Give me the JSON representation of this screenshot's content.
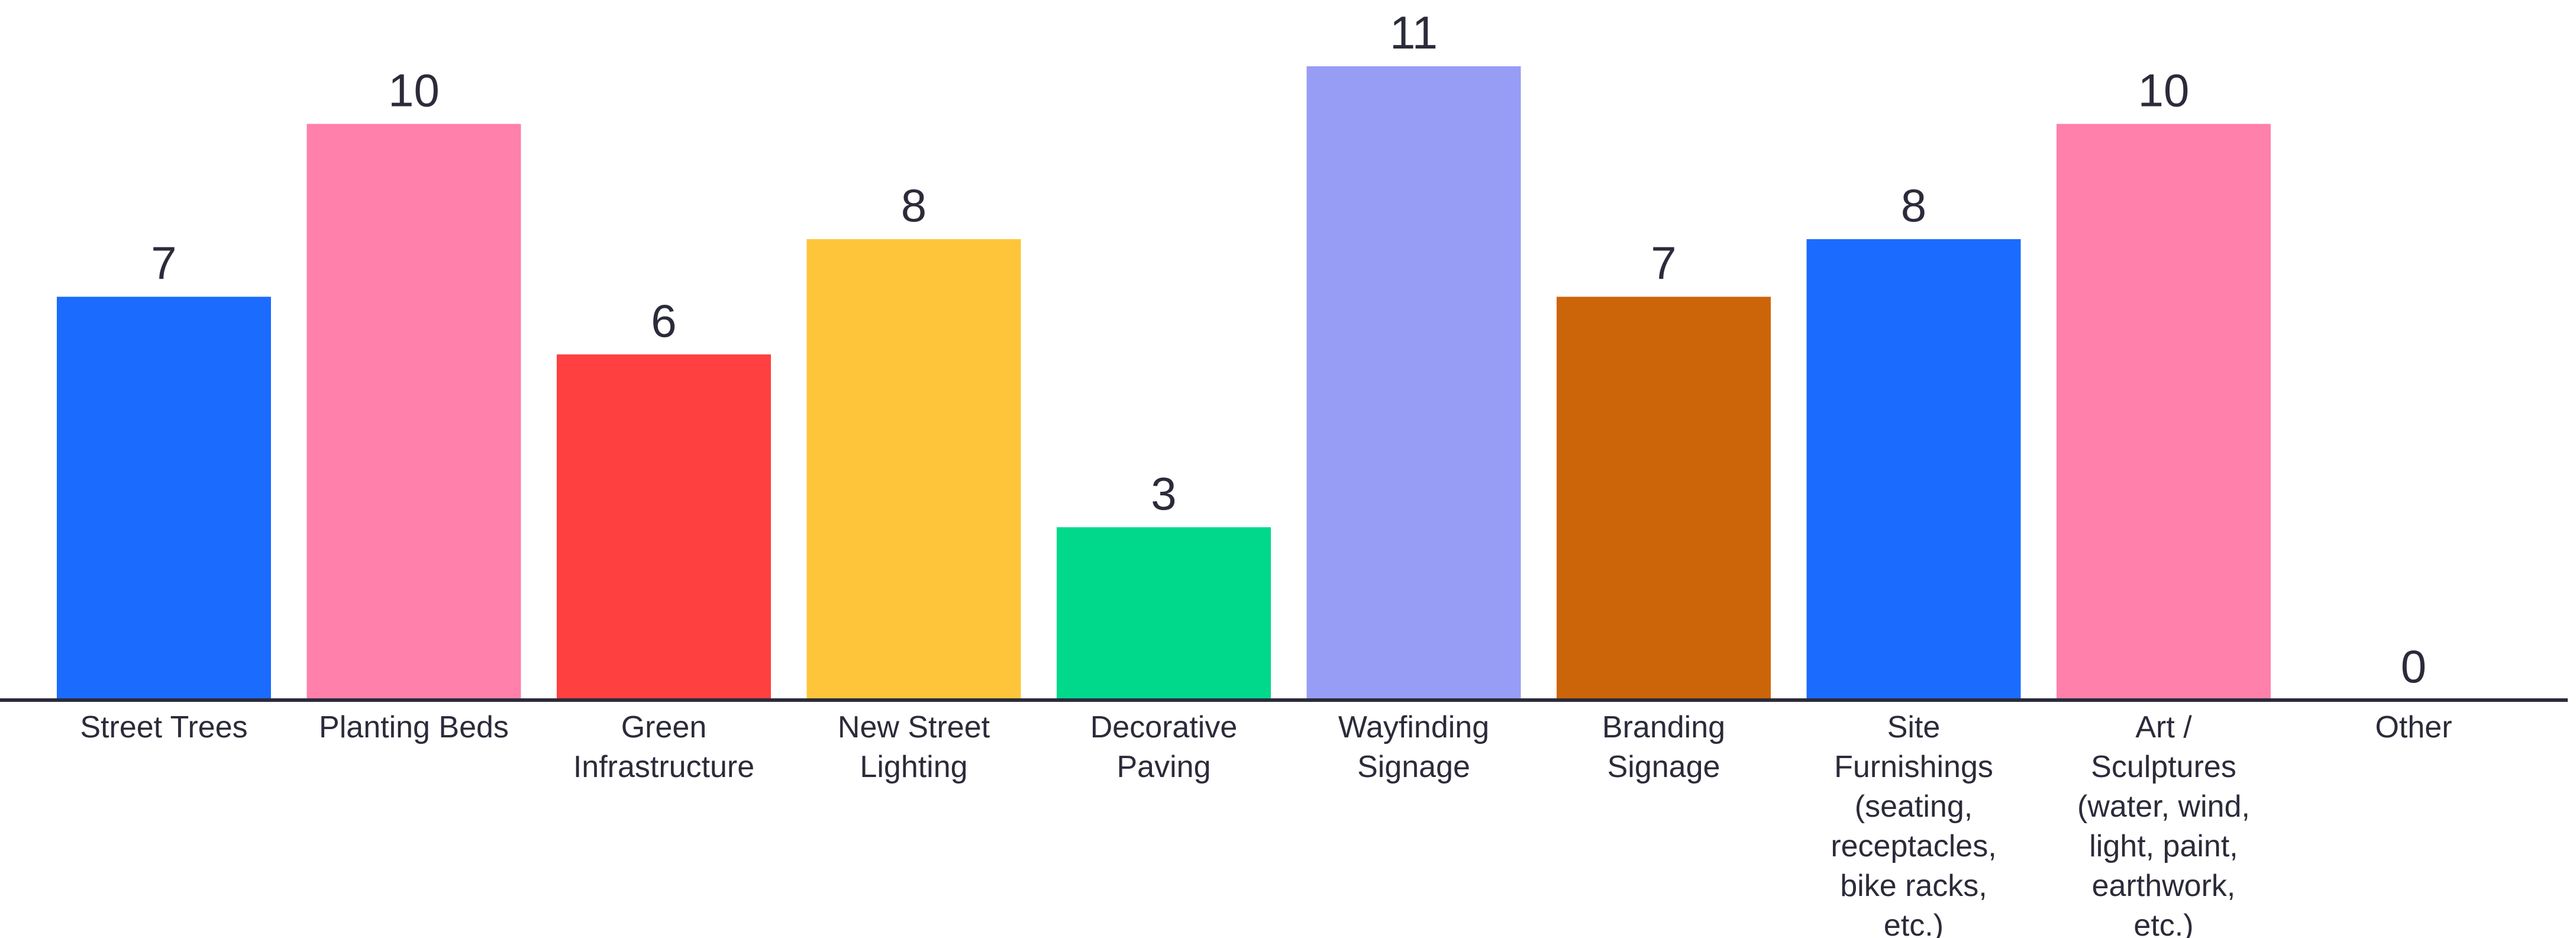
{
  "chart_data": {
    "type": "bar",
    "categories": [
      [
        "Street Trees"
      ],
      [
        "Planting Beds"
      ],
      [
        "Green",
        "Infrastructure"
      ],
      [
        "New Street",
        "Lighting"
      ],
      [
        "Decorative",
        "Paving"
      ],
      [
        "Wayfinding",
        "Signage"
      ],
      [
        "Branding",
        "Signage"
      ],
      [
        "Site",
        "Furnishings",
        "(seating,",
        "receptacles,",
        "bike racks,",
        "etc.)"
      ],
      [
        "Art /",
        "Sculptures",
        "(water, wind,",
        "light, paint,",
        "earthwork,",
        "etc.)"
      ],
      [
        "Other"
      ]
    ],
    "values": [
      7,
      10,
      6,
      8,
      3,
      11,
      7,
      8,
      10,
      0
    ],
    "colors": [
      "#1b6bff",
      "#ff80ab",
      "#ff4040",
      "#ffc53a",
      "#00d88c",
      "#979cf5",
      "#cc650a",
      "#1b6bff",
      "#ff80ab",
      "#1b6bff"
    ],
    "ylim": [
      0,
      11
    ],
    "grid": false,
    "legend": "none",
    "title": "",
    "xlabel": "",
    "ylabel": ""
  }
}
